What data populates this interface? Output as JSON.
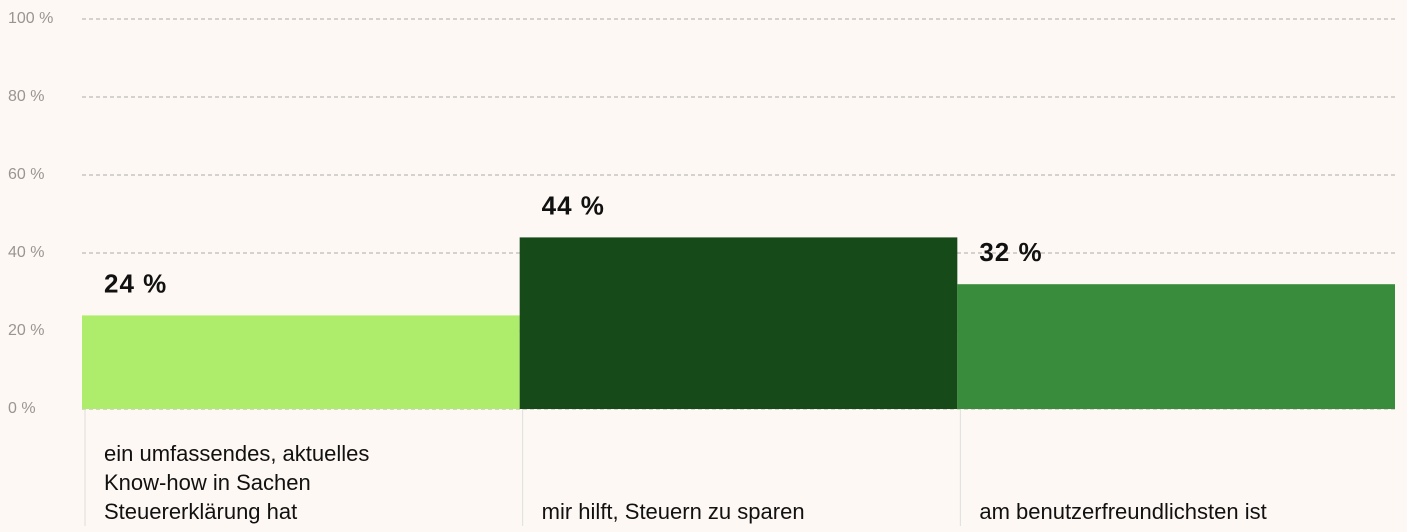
{
  "chart_data": {
    "type": "bar",
    "categories": [
      "ein umfassendes, aktuelles Know-how in Sachen Steuererklärung hat",
      "mir hilft, Steuern zu sparen",
      "am benutzerfreundlichsten ist"
    ],
    "values": [
      24,
      44,
      32
    ],
    "value_labels": [
      "24 %",
      "44 %",
      "32 %"
    ],
    "colors": [
      "#aeed6b",
      "#164a19",
      "#388c3c"
    ],
    "ylim": [
      0,
      100
    ],
    "yticks": [
      {
        "value": 0,
        "label": "0 %"
      },
      {
        "value": 20,
        "label": "20 %"
      },
      {
        "value": 40,
        "label": "40 %"
      },
      {
        "value": 60,
        "label": "60 %"
      },
      {
        "value": 80,
        "label": "80 %"
      },
      {
        "value": 100,
        "label": "100 %"
      }
    ],
    "grid": true
  }
}
